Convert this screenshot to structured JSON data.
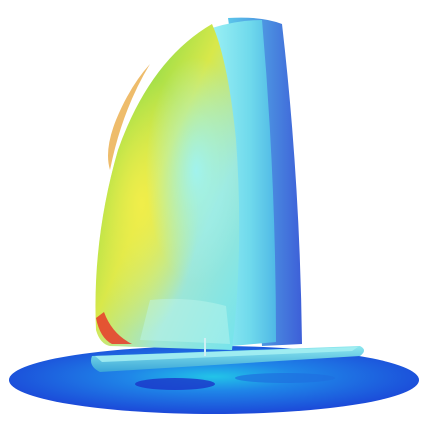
{
  "scene": {
    "subject": "sailboat-cfd-pressure-render",
    "colors": {
      "background": "#ffffff",
      "water_deep": "#1b3fd6",
      "water_mid": "#1f86e8",
      "water_light": "#22c4e8",
      "hull": "#5fd6e6",
      "hull_dark": "#2f8fd0",
      "main_sail_front": "#7fe6ef",
      "main_sail_back": "#4a7be0",
      "spinnaker_green": "#7cd64a",
      "spinnaker_yellow": "#e8e84a",
      "spinnaker_cyan": "#6fe6ee",
      "spinnaker_red": "#e83a2a",
      "mast": "#cfeff3"
    }
  }
}
